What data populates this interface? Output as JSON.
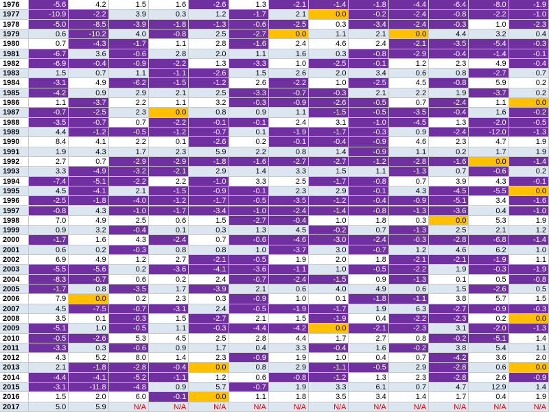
{
  "table": {
    "rows": [
      {
        "year": "1976",
        "cells": [
          "-5.6",
          "4.2",
          "1.5",
          "1.6",
          "-2.6",
          "1.3",
          "-2.1",
          "-1.4",
          "-1.8",
          "-4.4",
          "-6.4",
          "-8.0",
          "-1.9"
        ]
      },
      {
        "year": "1977",
        "cells": [
          "-10.9",
          "-2.2",
          "3.9",
          "0.3",
          "1.2",
          "-1.7",
          "2.1",
          "0.0",
          "-0.2",
          "-2.4",
          "-0.8",
          "-2.2",
          "-1.0"
        ]
      },
      {
        "year": "1978",
        "cells": [
          "-5.0",
          "-8.5",
          "-3.9",
          "-1.8",
          "-1.3",
          "-0.6",
          "-2.5",
          "0.3",
          "-3.4",
          "-2.4",
          "-0.3",
          "1.0",
          "-2.3"
        ]
      },
      {
        "year": "1979",
        "cells": [
          "0.6",
          "-10.2",
          "4.0",
          "-0.8",
          "2.5",
          "-2.7",
          "0.0",
          "1.1",
          "2.1",
          "0.0",
          "4.4",
          "3.2",
          "0.4"
        ]
      },
      {
        "year": "1980",
        "cells": [
          "0.7",
          "-4.3",
          "-1.7",
          "1.1",
          "2.8",
          "-1.6",
          "2.4",
          "4.6",
          "2.4",
          "-2.1",
          "-3.5",
          "-5.4",
          "-0.3"
        ]
      },
      {
        "year": "1981",
        "cells": [
          "-6.7",
          "3.6",
          "-0.6",
          "2.8",
          "2.0",
          "1.1",
          "1.6",
          "0.3",
          "-0.8",
          "-2.9",
          "-0.4",
          "-1.4",
          "-0.1"
        ]
      },
      {
        "year": "1982",
        "cells": [
          "-6.9",
          "-0.4",
          "-0.9",
          "-2.2",
          "1.3",
          "-3.3",
          "1.0",
          "-2.5",
          "-0.1",
          "1.2",
          "2.3",
          "4.9",
          "-0.4"
        ]
      },
      {
        "year": "1983",
        "cells": [
          "1.5",
          "0.7",
          "1.1",
          "-1.1",
          "-2.6",
          "1.5",
          "2.6",
          "2.0",
          "3.4",
          "0.6",
          "0.8",
          "-2.7",
          "0.7"
        ]
      },
      {
        "year": "1984",
        "cells": [
          "-3.1",
          "4.9",
          "-6.2",
          "-1.5",
          "-1.2",
          "2.6",
          "-2.2",
          "1.0",
          "-2.5",
          "4.5",
          "-0.8",
          "5.9",
          "0.2"
        ]
      },
      {
        "year": "1985",
        "cells": [
          "-4.2",
          "0.9",
          "2.9",
          "2.1",
          "2.5",
          "-3.3",
          "-0.7",
          "-0.3",
          "2.1",
          "2.2",
          "1.9",
          "-3.7",
          "0.2"
        ]
      },
      {
        "year": "1986",
        "cells": [
          "1.1",
          "-3.7",
          "2.2",
          "1.1",
          "3.2",
          "-0.3",
          "-0.9",
          "-2.6",
          "-0.5",
          "0.7",
          "-2.4",
          "1.1",
          "0.0"
        ]
      },
      {
        "year": "1987",
        "cells": [
          "-0.7",
          "-2.5",
          "2.3",
          "0.0",
          "0.8",
          "0.9",
          "1.1",
          "-1.5",
          "-0.5",
          "-3.5",
          "-0.4",
          "1.6",
          "-0.2"
        ]
      },
      {
        "year": "1988",
        "cells": [
          "-3.5",
          "-0.7",
          "0.7",
          "-2.2",
          "-0.1",
          "-0.1",
          "2.4",
          "3.1",
          "-1.0",
          "-4.5",
          "1.3",
          "-2.0",
          "-0.5"
        ]
      },
      {
        "year": "1989",
        "cells": [
          "4.4",
          "-1.2",
          "-0.5",
          "-1.2",
          "-0.7",
          "0.1",
          "-1.9",
          "-1.7",
          "-0.3",
          "0.9",
          "-2.4",
          "-12.0",
          "-1.3"
        ]
      },
      {
        "year": "1990",
        "cells": [
          "8.4",
          "4.1",
          "2.2",
          "0.1",
          "-2.6",
          "0.2",
          "-0.1",
          "-0.4",
          "-0.9",
          "4.6",
          "2.3",
          "4.7",
          "1.9"
        ]
      },
      {
        "year": "1991",
        "cells": [
          "1.9",
          "4.3",
          "1.7",
          "2.3",
          "5.9",
          "2.2",
          "0.8",
          "1.4",
          "-0.9",
          "1.1",
          "0.2",
          "1.7",
          "1.9"
        ]
      },
      {
        "year": "1992",
        "cells": [
          "2.7",
          "0.7",
          "-2.9",
          "-2.9",
          "-1.8",
          "-1.6",
          "-2.7",
          "-2.7",
          "-1.2",
          "-2.8",
          "-1.6",
          "0.0",
          "-1.4"
        ]
      },
      {
        "year": "1993",
        "cells": [
          "3.3",
          "-4.9",
          "-3.2",
          "-2.1",
          "2.9",
          "1.4",
          "3.3",
          "1.5",
          "1.1",
          "-1.3",
          "0.7",
          "-0.6",
          "0.2"
        ]
      },
      {
        "year": "1994",
        "cells": [
          "-7.4",
          "-5.1",
          "-2.2",
          "2.2",
          "-1.0",
          "3.3",
          "2.5",
          "-1.7",
          "-0.8",
          "0.7",
          "3.9",
          "4.3",
          "-0.1"
        ]
      },
      {
        "year": "1995",
        "cells": [
          "4.5",
          "-4.1",
          "2.1",
          "-1.5",
          "-0.9",
          "-0.1",
          "2.3",
          "2.9",
          "-0.1",
          "4.3",
          "-4.5",
          "-5.5",
          "0.0"
        ]
      },
      {
        "year": "1996",
        "cells": [
          "-2.5",
          "-1.8",
          "-4.0",
          "-1.2",
          "-1.7",
          "-0.5",
          "-3.5",
          "-1.2",
          "-0.4",
          "-0.9",
          "-5.1",
          "3.4",
          "-1.6"
        ]
      },
      {
        "year": "1997",
        "cells": [
          "-0.8",
          "4.3",
          "-1.0",
          "-1.7",
          "-3.4",
          "-1.0",
          "-2.4",
          "-1.4",
          "-0.8",
          "-1.3",
          "-3.6",
          "0.4",
          "-1.0"
        ]
      },
      {
        "year": "1998",
        "cells": [
          "7.0",
          "4.9",
          "2.5",
          "0.6",
          "1.5",
          "-2.7",
          "-0.4",
          "1.0",
          "1.8",
          "0.3",
          "0.0",
          "5.3",
          "1.9"
        ]
      },
      {
        "year": "1999",
        "cells": [
          "0.9",
          "3.2",
          "-0.4",
          "0.1",
          "0.3",
          "1.3",
          "4.5",
          "-0.2",
          "0.7",
          "-1.3",
          "2.5",
          "2.1",
          "1.2"
        ]
      },
      {
        "year": "2000",
        "cells": [
          "-1.7",
          "1.6",
          "4.3",
          "-2.4",
          "0.7",
          "-0.6",
          "-4.6",
          "-3.0",
          "-2.4",
          "-0.3",
          "-2.8",
          "-6.8",
          "-1.4"
        ]
      },
      {
        "year": "2001",
        "cells": [
          "0.6",
          "0.2",
          "-0.3",
          "0.8",
          "0.8",
          "1.0",
          "-3.7",
          "3.0",
          "-0.7",
          "1.2",
          "4.6",
          "6.2",
          "1.0"
        ]
      },
      {
        "year": "2002",
        "cells": [
          "6.9",
          "4.9",
          "1.2",
          "2.7",
          "-2.1",
          "-0.5",
          "1.9",
          "2.0",
          "1.8",
          "-2.1",
          "-2.1",
          "-1.9",
          "1.1"
        ]
      },
      {
        "year": "2003",
        "cells": [
          "-5.5",
          "-5.6",
          "0.2",
          "-3.6",
          "-4.1",
          "-3.6",
          "-1.1",
          "1.0",
          "-0.5",
          "-2.2",
          "1.9",
          "-0.3",
          "-1.9"
        ]
      },
      {
        "year": "2004",
        "cells": [
          "-8.3",
          "-0.7",
          "0.6",
          "0.2",
          "2.4",
          "-0.7",
          "-2.4",
          "-1.5",
          "0.9",
          "-1.3",
          "0.1",
          "0.5",
          "-0.8"
        ]
      },
      {
        "year": "2005",
        "cells": [
          "-1.7",
          "0.8",
          "-3.5",
          "1.7",
          "-3.9",
          "2.1",
          "0.6",
          "4.0",
          "4.9",
          "0.6",
          "1.5",
          "-2.6",
          "0.5"
        ]
      },
      {
        "year": "2006",
        "cells": [
          "7.9",
          "0.0",
          "0.2",
          "2.3",
          "0.3",
          "-0.9",
          "1.0",
          "0.1",
          "-1.8",
          "-1.1",
          "3.8",
          "5.7",
          "1.5"
        ]
      },
      {
        "year": "2007",
        "cells": [
          "4.5",
          "-7.5",
          "-0.7",
          "-3.1",
          "2.4",
          "-0.5",
          "-1.9",
          "-1.7",
          "1.9",
          "6.3",
          "-2.7",
          "-0.9",
          "-0.3"
        ]
      },
      {
        "year": "2008",
        "cells": [
          "3.5",
          "0.1",
          "-0.3",
          "1.5",
          "-2.7",
          "2.1",
          "1.5",
          "-1.9",
          "0.4",
          "-2.2",
          "-2.3",
          "0.2",
          "0.0"
        ]
      },
      {
        "year": "2009",
        "cells": [
          "-5.1",
          "1.0",
          "-0.5",
          "1.1",
          "-0.3",
          "-4.4",
          "-4.2",
          "0.0",
          "-2.1",
          "-2.3",
          "3.1",
          "-2.0",
          "-1.3"
        ]
      },
      {
        "year": "2010",
        "cells": [
          "-0.5",
          "-2.6",
          "5.3",
          "4.5",
          "2.5",
          "2.8",
          "4.4",
          "1.7",
          "2.7",
          "0.8",
          "-0.2",
          "-5.1",
          "1.4"
        ]
      },
      {
        "year": "2011",
        "cells": [
          "-3.3",
          "0.3",
          "-0.6",
          "0.9",
          "1.7",
          "0.4",
          "3.3",
          "-0.4",
          "1.6",
          "-0.2",
          "3.8",
          "5.4",
          "1.1"
        ]
      },
      {
        "year": "2012",
        "cells": [
          "4.3",
          "5.2",
          "8.0",
          "1.4",
          "2.3",
          "-0.9",
          "1.9",
          "1.0",
          "0.4",
          "0.7",
          "-4.2",
          "3.6",
          "2.0"
        ]
      },
      {
        "year": "2013",
        "cells": [
          "2.1",
          "-1.8",
          "-2.8",
          "-0.4",
          "0.0",
          "0.8",
          "2.9",
          "-1.1",
          "-0.5",
          "2.9",
          "-2.8",
          "0.6",
          "0.0"
        ]
      },
      {
        "year": "2014",
        "cells": [
          "-4.4",
          "-4.1",
          "-5.2",
          "-1.1",
          "1.2",
          "0.6",
          "-0.8",
          "-1.2",
          "1.3",
          "2.3",
          "-2.8",
          "2.6",
          "-0.9"
        ]
      },
      {
        "year": "2015",
        "cells": [
          "-3.1",
          "-11.8",
          "-4.8",
          "0.9",
          "5.7",
          "-0.7",
          "1.9",
          "3.3",
          "6.1",
          "0.7",
          "4.7",
          "12.9",
          "1.4"
        ]
      },
      {
        "year": "2016",
        "cells": [
          "1.5",
          "2.0",
          "6.0",
          "-0.1",
          "0.0",
          "1.1",
          "1.8",
          "3.5",
          "3.4",
          "1.4",
          "1.7",
          "0.4",
          "1.9"
        ]
      },
      {
        "year": "2017",
        "cells": [
          "5.0",
          "5.9",
          "N/A",
          "N/A",
          "N/A",
          "N/A",
          "N/A",
          "N/A",
          "N/A",
          "N/A",
          "N/A",
          "N/A",
          "N/A"
        ]
      }
    ]
  }
}
